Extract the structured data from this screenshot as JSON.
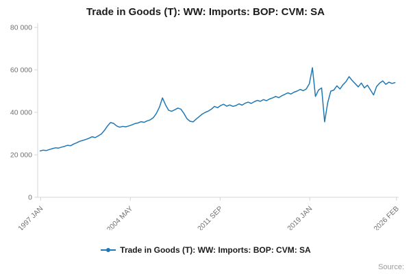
{
  "chart_data": {
    "type": "line",
    "title": "Trade in Goods (T): WW: Imports: BOP: CVM: SA",
    "legend_label": "Trade in Goods (T): WW: Imports: BOP: CVM: SA",
    "source": "Source:",
    "line_color": "#1f77b4",
    "axis_color": "#d4d4d4",
    "tick_label_color": "#707070",
    "xlim": [
      1996.8,
      2026.3
    ],
    "ylim": [
      0,
      80000
    ],
    "xlabel": "",
    "ylabel": "",
    "grid": false,
    "legend_position": "bottom-center",
    "x_unit": "decimal_year",
    "x_start": 1997.0,
    "x_step": 0.25,
    "yticks": [
      {
        "v": 0,
        "label": "0"
      },
      {
        "v": 20000,
        "label": "20 000"
      },
      {
        "v": 40000,
        "label": "40 000"
      },
      {
        "v": 60000,
        "label": "60 000"
      },
      {
        "v": 80000,
        "label": "80 000"
      }
    ],
    "xticks": [
      {
        "v": 1997.04,
        "label": "1997 JAN"
      },
      {
        "v": 2004.37,
        "label": "2004 MAY"
      },
      {
        "v": 2011.71,
        "label": "2011 SEP"
      },
      {
        "v": 2019.04,
        "label": "2019 JAN"
      },
      {
        "v": 2026.12,
        "label": "2026 FEB"
      }
    ],
    "values": [
      21800,
      22200,
      22000,
      22500,
      22900,
      23300,
      23150,
      23600,
      24000,
      24500,
      24300,
      25100,
      25700,
      26400,
      26800,
      27300,
      27800,
      28500,
      28100,
      28900,
      29800,
      31500,
      33500,
      35200,
      34800,
      33600,
      33000,
      33400,
      33200,
      33600,
      34100,
      34700,
      35000,
      35600,
      35300,
      36000,
      36500,
      37500,
      39500,
      42500,
      46800,
      43500,
      41000,
      40500,
      41200,
      42000,
      41500,
      39500,
      37000,
      35800,
      35500,
      36800,
      38000,
      39200,
      40000,
      40600,
      41500,
      42800,
      42200,
      43200,
      43800,
      42900,
      43500,
      42800,
      43200,
      44000,
      43400,
      44300,
      44800,
      44200,
      45000,
      45600,
      45200,
      46000,
      45500,
      46300,
      46800,
      47500,
      46900,
      47800,
      48500,
      49200,
      48600,
      49500,
      50000,
      50800,
      50200,
      51000,
      53500,
      61000,
      47500,
      50500,
      51500,
      35500,
      44500,
      50000,
      50500,
      52500,
      51000,
      53000,
      54500,
      56800,
      55000,
      53500,
      52000,
      53800,
      51500,
      52800,
      50500,
      48200,
      52200,
      53800,
      54800,
      53200,
      54200,
      53600,
      54000
    ]
  }
}
